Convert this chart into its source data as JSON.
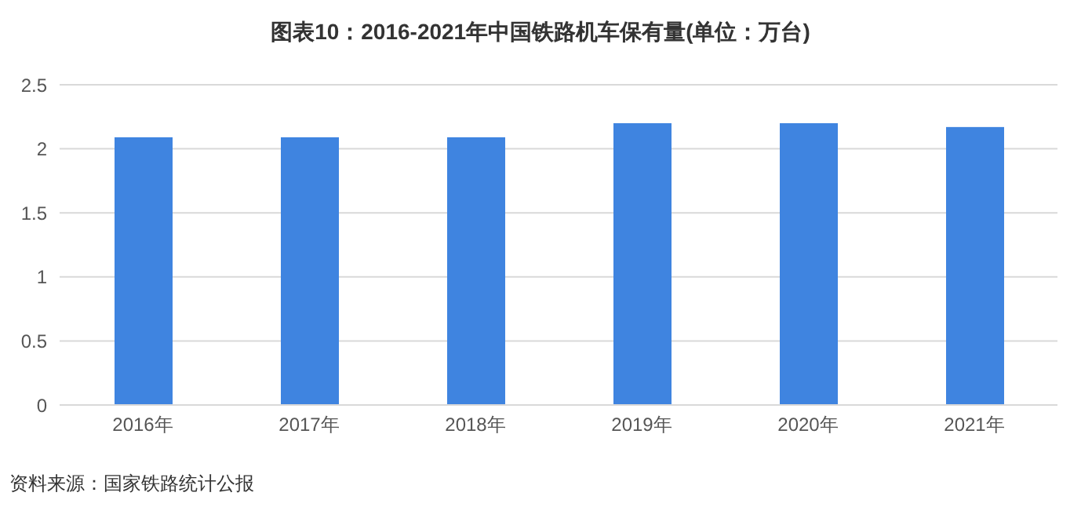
{
  "chart_data": {
    "type": "bar",
    "title": "图表10：2016-2021年中国铁路机车保有量(单位：万台)",
    "categories": [
      "2016年",
      "2017年",
      "2018年",
      "2019年",
      "2020年",
      "2021年"
    ],
    "values": [
      2.09,
      2.09,
      2.09,
      2.2,
      2.2,
      2.17
    ],
    "color": "#3f84e0",
    "ylim": [
      0,
      2.5
    ],
    "yticks": [
      0,
      0.5,
      1,
      1.5,
      2,
      2.5
    ],
    "grid": "y",
    "annotations": [
      "资料来源：国家铁路统计公报"
    ]
  }
}
